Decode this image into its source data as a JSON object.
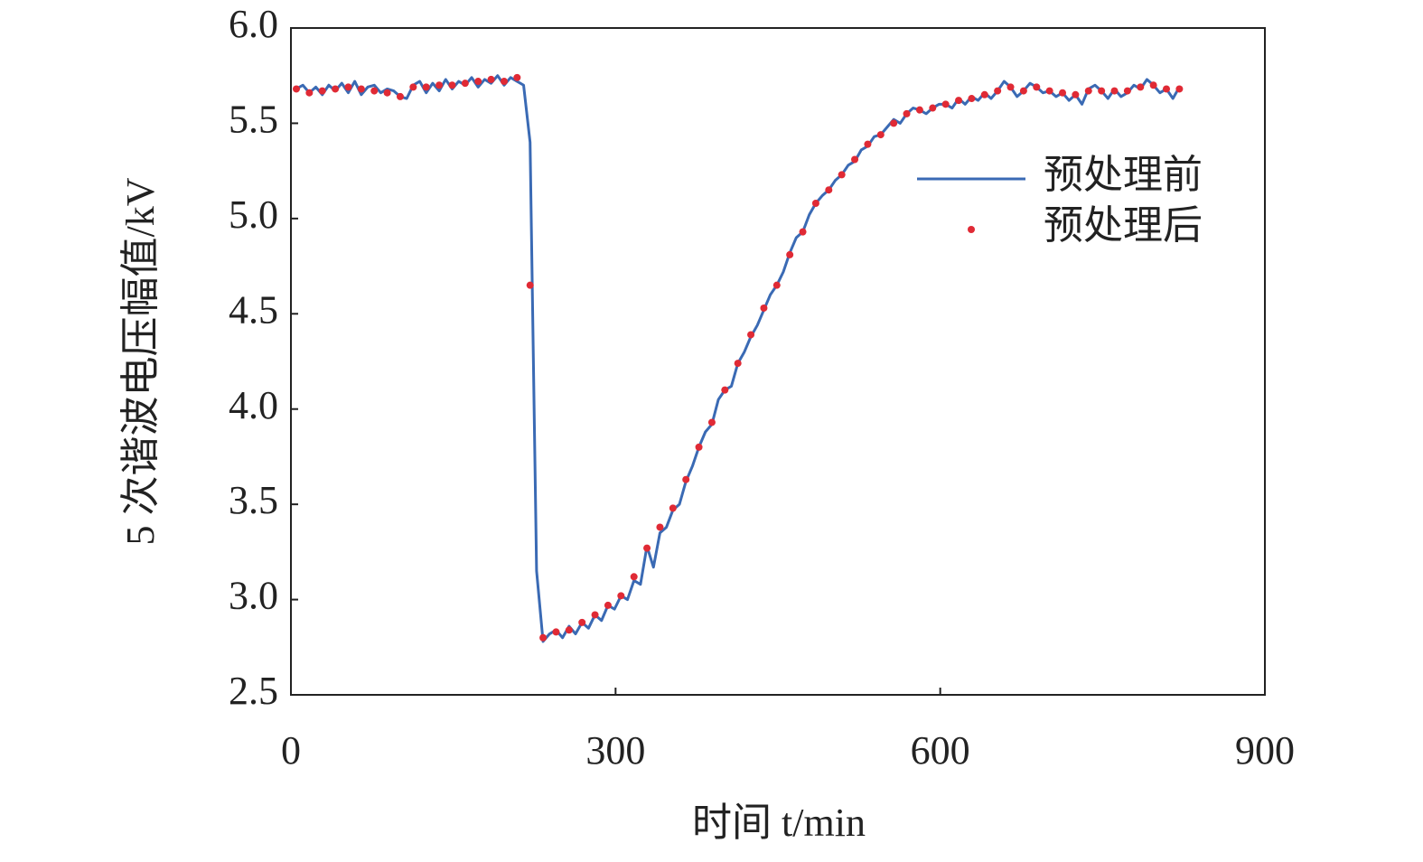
{
  "chart_data": {
    "type": "line",
    "x_label": "时间 t/min",
    "y_label": "5 次谐波电压幅值/kV",
    "xlim": [
      0,
      900
    ],
    "xticks": [
      0,
      300,
      600,
      900
    ],
    "ylim": [
      2.5,
      6.0
    ],
    "yticks": [
      {
        "value": 2.5,
        "label": "2.5"
      },
      {
        "value": 3.0,
        "label": "3.0"
      },
      {
        "value": 3.5,
        "label": "3.5"
      },
      {
        "value": 4.0,
        "label": "4.0"
      },
      {
        "value": 4.5,
        "label": "4.5"
      },
      {
        "value": 5.0,
        "label": "5.0"
      },
      {
        "value": 5.5,
        "label": "5.5"
      },
      {
        "value": 6.0,
        "label": "6.0"
      }
    ],
    "legend": "right",
    "x": [
      5,
      11,
      17,
      23,
      29,
      35,
      41,
      47,
      53,
      59,
      65,
      71,
      77,
      83,
      89,
      95,
      101,
      107,
      113,
      119,
      125,
      131,
      137,
      143,
      149,
      155,
      161,
      167,
      173,
      179,
      185,
      191,
      197,
      203,
      209,
      215,
      221,
      227,
      233,
      239,
      245,
      251,
      257,
      263,
      269,
      275,
      281,
      287,
      293,
      299,
      305,
      311,
      317,
      323,
      329,
      335,
      341,
      347,
      353,
      359,
      365,
      371,
      377,
      383,
      389,
      395,
      401,
      407,
      413,
      419,
      425,
      431,
      437,
      443,
      449,
      455,
      461,
      467,
      473,
      479,
      485,
      491,
      497,
      503,
      509,
      515,
      521,
      527,
      533,
      539,
      545,
      551,
      557,
      563,
      569,
      575,
      581,
      587,
      593,
      599,
      605,
      611,
      617,
      623,
      629,
      635,
      641,
      647,
      653,
      659,
      665,
      671,
      677,
      683,
      689,
      695,
      701,
      707,
      713,
      719,
      725,
      731,
      737,
      743,
      749,
      755,
      761,
      767,
      773,
      779,
      785,
      791,
      797,
      803,
      809,
      815,
      821
    ],
    "series": [
      {
        "name": "预处理前",
        "mode": "line",
        "color": "#3a6ab4",
        "values": [
          5.68,
          5.7,
          5.66,
          5.69,
          5.65,
          5.7,
          5.67,
          5.71,
          5.66,
          5.72,
          5.65,
          5.69,
          5.7,
          5.66,
          5.68,
          5.67,
          5.64,
          5.63,
          5.7,
          5.72,
          5.66,
          5.71,
          5.67,
          5.73,
          5.68,
          5.72,
          5.7,
          5.74,
          5.69,
          5.73,
          5.71,
          5.75,
          5.7,
          5.74,
          5.72,
          5.7,
          5.4,
          3.15,
          2.78,
          2.82,
          2.84,
          2.8,
          2.86,
          2.82,
          2.88,
          2.85,
          2.92,
          2.89,
          2.97,
          2.95,
          3.02,
          3.0,
          3.1,
          3.08,
          3.28,
          3.17,
          3.35,
          3.38,
          3.47,
          3.5,
          3.62,
          3.7,
          3.8,
          3.88,
          3.92,
          4.05,
          4.1,
          4.12,
          4.24,
          4.3,
          4.38,
          4.44,
          4.52,
          4.6,
          4.65,
          4.72,
          4.82,
          4.9,
          4.93,
          5.02,
          5.08,
          5.12,
          5.15,
          5.2,
          5.23,
          5.28,
          5.3,
          5.36,
          5.38,
          5.43,
          5.44,
          5.48,
          5.52,
          5.5,
          5.55,
          5.58,
          5.57,
          5.55,
          5.58,
          5.6,
          5.6,
          5.58,
          5.63,
          5.6,
          5.64,
          5.62,
          5.66,
          5.63,
          5.67,
          5.72,
          5.69,
          5.64,
          5.67,
          5.71,
          5.69,
          5.66,
          5.67,
          5.64,
          5.66,
          5.62,
          5.65,
          5.6,
          5.68,
          5.7,
          5.67,
          5.63,
          5.68,
          5.64,
          5.66,
          5.7,
          5.68,
          5.73,
          5.7,
          5.66,
          5.68,
          5.63,
          5.69
        ]
      },
      {
        "name": "预处理后",
        "mode": "scatter",
        "color": "#e02a35",
        "values": [
          5.68,
          null,
          5.66,
          null,
          5.67,
          null,
          5.68,
          null,
          5.69,
          null,
          5.68,
          null,
          5.67,
          null,
          5.66,
          null,
          5.64,
          null,
          5.69,
          null,
          5.69,
          null,
          5.7,
          null,
          5.7,
          null,
          5.71,
          null,
          5.72,
          null,
          5.73,
          null,
          5.72,
          null,
          5.74,
          null,
          4.65,
          null,
          2.8,
          null,
          2.83,
          null,
          2.84,
          null,
          2.88,
          null,
          2.92,
          null,
          2.97,
          null,
          3.02,
          null,
          3.12,
          null,
          3.27,
          null,
          3.38,
          null,
          3.48,
          null,
          3.63,
          null,
          3.8,
          null,
          3.93,
          null,
          4.1,
          null,
          4.24,
          null,
          4.39,
          null,
          4.53,
          null,
          4.65,
          null,
          4.81,
          null,
          4.93,
          null,
          5.08,
          null,
          5.15,
          null,
          5.23,
          null,
          5.31,
          null,
          5.39,
          null,
          5.44,
          null,
          5.5,
          null,
          5.55,
          null,
          5.57,
          null,
          5.58,
          null,
          5.6,
          null,
          5.62,
          null,
          5.63,
          null,
          5.65,
          null,
          5.67,
          null,
          5.69,
          null,
          5.67,
          null,
          5.69,
          null,
          5.67,
          null,
          5.66,
          null,
          5.65,
          null,
          5.67,
          null,
          5.67,
          null,
          5.67,
          null,
          5.67,
          null,
          5.69,
          null,
          5.7,
          null,
          5.68,
          null,
          5.68
        ]
      }
    ]
  }
}
